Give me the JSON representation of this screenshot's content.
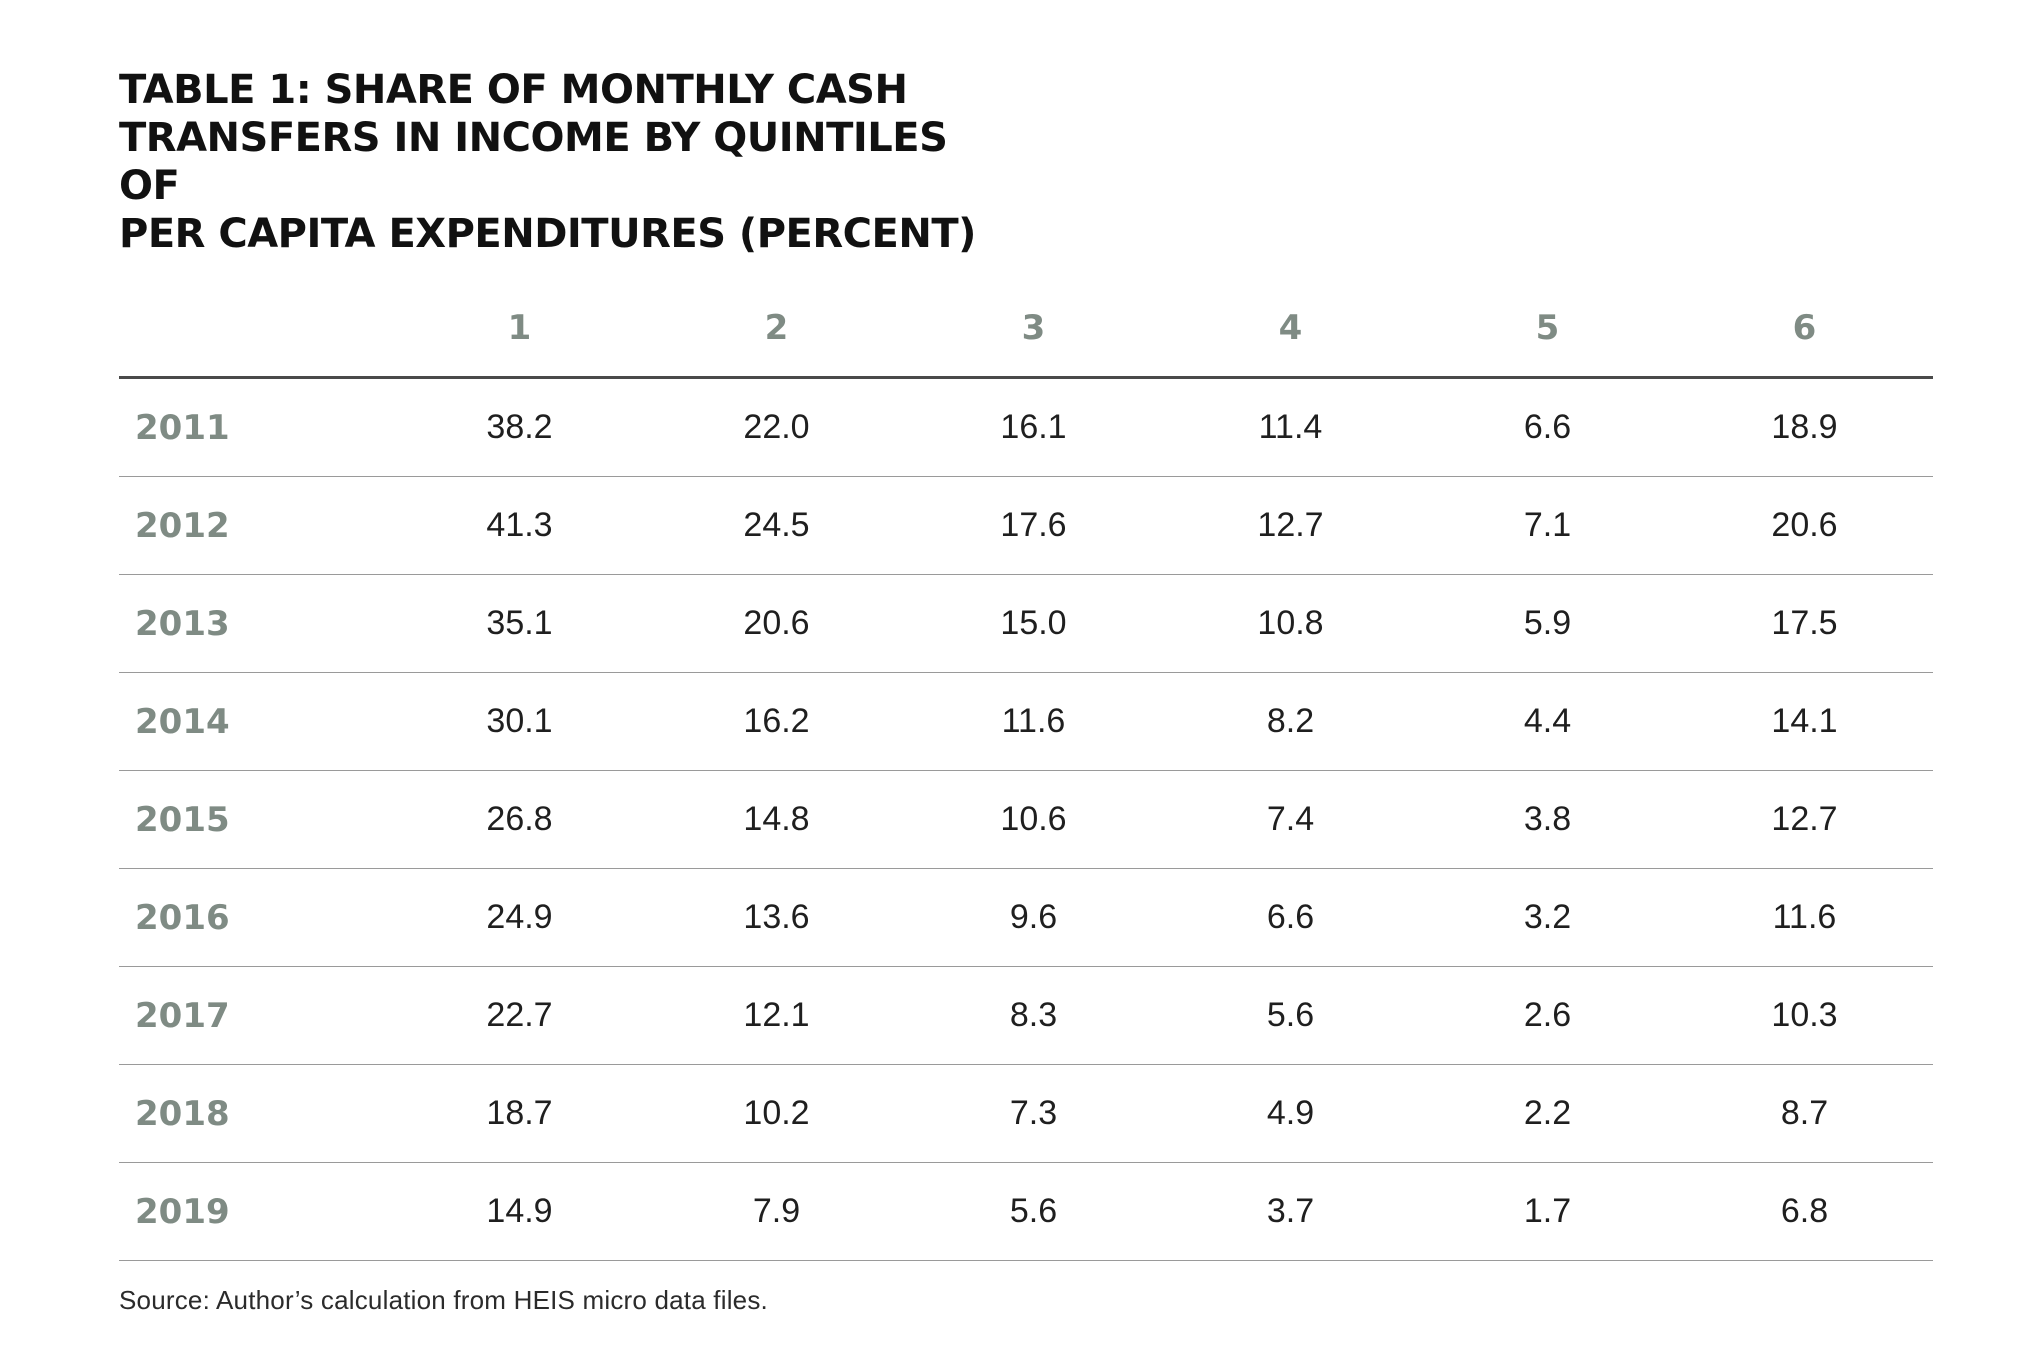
{
  "title": "TABLE 1: SHARE OF MONTHLY CASH TRANSFERS IN INCOME BY QUINTILES OF PER CAPITA EXPENDITURES (PERCENT)",
  "title_lines": [
    "TABLE 1: SHARE OF MONTHLY CASH",
    "TRANSFERS IN INCOME BY QUINTILES OF",
    "PER CAPITA EXPENDITURES (PERCENT)"
  ],
  "table": {
    "year_header": "",
    "columns": [
      "1",
      "2",
      "3",
      "4",
      "5",
      "6"
    ],
    "rows": [
      {
        "year": "2011",
        "values": [
          "38.2",
          "22.0",
          "16.1",
          "11.4",
          "6.6",
          "18.9"
        ]
      },
      {
        "year": "2012",
        "values": [
          "41.3",
          "24.5",
          "17.6",
          "12.7",
          "7.1",
          "20.6"
        ]
      },
      {
        "year": "2013",
        "values": [
          "35.1",
          "20.6",
          "15.0",
          "10.8",
          "5.9",
          "17.5"
        ]
      },
      {
        "year": "2014",
        "values": [
          "30.1",
          "16.2",
          "11.6",
          "8.2",
          "4.4",
          "14.1"
        ]
      },
      {
        "year": "2015",
        "values": [
          "26.8",
          "14.8",
          "10.6",
          "7.4",
          "3.8",
          "12.7"
        ]
      },
      {
        "year": "2016",
        "values": [
          "24.9",
          "13.6",
          "9.6",
          "6.6",
          "3.2",
          "11.6"
        ]
      },
      {
        "year": "2017",
        "values": [
          "22.7",
          "12.1",
          "8.3",
          "5.6",
          "2.6",
          "10.3"
        ]
      },
      {
        "year": "2018",
        "values": [
          "18.7",
          "10.2",
          "7.3",
          "4.9",
          "2.2",
          "8.7"
        ]
      },
      {
        "year": "2019",
        "values": [
          "14.9",
          "7.9",
          "5.6",
          "3.7",
          "1.7",
          "6.8"
        ]
      }
    ]
  },
  "source": "Source: Author’s calculation from HEIS micro data files.",
  "colors": {
    "header_text": "#7f8b84",
    "body_text": "#1f1f1f",
    "rule_heavy": "#4a4a4a",
    "rule_light": "#9a9a9a"
  }
}
